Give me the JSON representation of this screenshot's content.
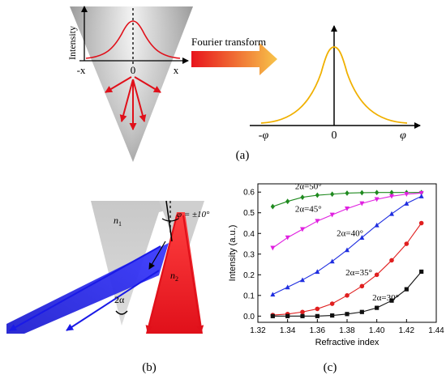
{
  "panel_a": {
    "ylabel": "Intensity",
    "tick_left": "-x",
    "tick_zero": "0",
    "tick_right": "x",
    "arrow_label": "Fourier transform",
    "ft_tick_left": "-φ",
    "ft_tick_zero": "0",
    "ft_tick_right": "φ",
    "caption": "(a)"
  },
  "panel_b": {
    "n1": "n",
    "n1_sub": "1",
    "n2": "n",
    "n2_sub": "2",
    "phi": "φ = ±10°",
    "alpha": "2α",
    "caption": "(b)"
  },
  "panel_c": {
    "caption": "(c)"
  },
  "chart_data": {
    "type": "line",
    "xlabel": "Refractive index",
    "ylabel": "Intensity (a.u.)",
    "xlim": [
      1.32,
      1.44
    ],
    "ylim": [
      -0.03,
      0.64
    ],
    "x_ticks": [
      "1.32",
      "1.34",
      "1.36",
      "1.38",
      "1.40",
      "1.42",
      "1.44"
    ],
    "y_ticks": [
      "0.0",
      "0.1",
      "0.2",
      "0.3",
      "0.4",
      "0.5",
      "0.6"
    ],
    "x": [
      1.33,
      1.34,
      1.35,
      1.36,
      1.37,
      1.38,
      1.39,
      1.4,
      1.41,
      1.42,
      1.43
    ],
    "series": [
      {
        "name": "2α=50°",
        "marker": "diamond",
        "color": "#1f8a1f",
        "values": [
          0.53,
          0.555,
          0.575,
          0.585,
          0.59,
          0.595,
          0.597,
          0.598,
          0.598,
          0.598,
          0.598
        ]
      },
      {
        "name": "2α=45°",
        "marker": "triangle-down",
        "color": "#e020e0",
        "values": [
          0.33,
          0.38,
          0.42,
          0.46,
          0.49,
          0.52,
          0.545,
          0.565,
          0.58,
          0.59,
          0.595
        ]
      },
      {
        "name": "2α=40°",
        "marker": "triangle-up",
        "color": "#1f2ee0",
        "values": [
          0.105,
          0.14,
          0.175,
          0.215,
          0.265,
          0.32,
          0.38,
          0.44,
          0.495,
          0.545,
          0.58
        ]
      },
      {
        "name": "2α=35°",
        "marker": "circle",
        "color": "#e01f1f",
        "values": [
          0.005,
          0.01,
          0.02,
          0.035,
          0.06,
          0.1,
          0.145,
          0.2,
          0.27,
          0.35,
          0.45
        ]
      },
      {
        "name": "2α=30°",
        "marker": "square",
        "color": "#111111",
        "values": [
          0.0,
          0.0,
          0.0,
          0.0,
          0.003,
          0.01,
          0.02,
          0.04,
          0.075,
          0.13,
          0.215
        ]
      }
    ]
  }
}
